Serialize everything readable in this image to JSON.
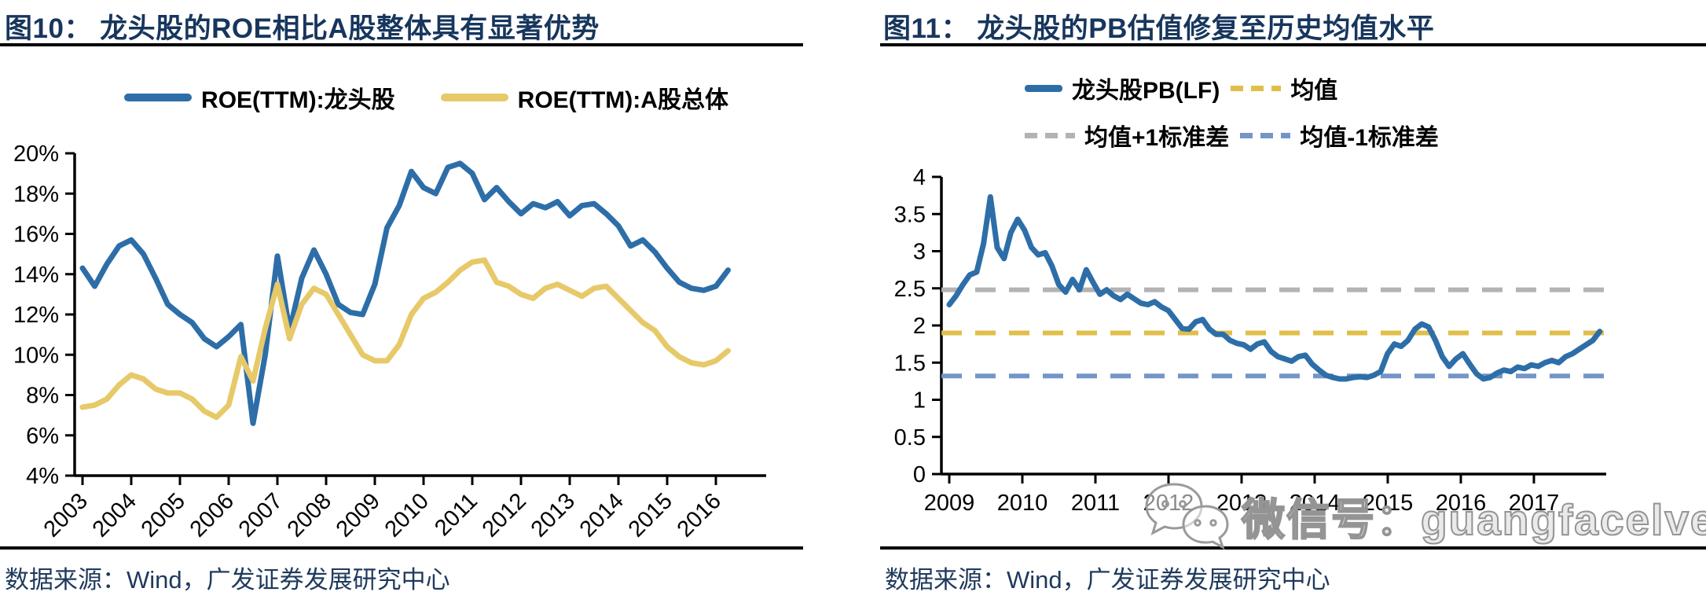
{
  "panels": [
    {
      "fig_title": "图10：  龙头股的ROE相比A股整体具有显著优势",
      "source": "数据来源：Wind，广发证券发展研究中心"
    },
    {
      "fig_title": "图11：  龙头股的PB估值修复至历史均值水平",
      "source": "数据来源：Wind，广发证券发展研究中心"
    }
  ],
  "watermark": {
    "icon": "wechat-icon",
    "text": "微信号：guangfacelve"
  },
  "colors": {
    "blue": "#2d6ea8",
    "yellow": "#e7c969",
    "gold": "#e0be4a",
    "gray": "#b3b3b3",
    "steel": "#7396c6",
    "axis": "#000000",
    "navy": "#17365d"
  },
  "chart_data": [
    {
      "type": "line",
      "title": "龙头股的ROE相比A股整体具有显著优势",
      "xlabel": "",
      "ylabel": "",
      "ylim": [
        4,
        20
      ],
      "x_start": 2003.0,
      "x_step": 0.25,
      "legend_position": "top",
      "grid": false,
      "yticks": {
        "values": [
          4,
          6,
          8,
          10,
          12,
          14,
          16,
          18,
          20
        ],
        "labels": [
          "4%",
          "6%",
          "8%",
          "10%",
          "12%",
          "14%",
          "16%",
          "18%",
          "20%"
        ]
      },
      "xticks": {
        "values": [
          2003,
          2004,
          2005,
          2006,
          2007,
          2008,
          2009,
          2010,
          2011,
          2012,
          2013,
          2014,
          2015,
          2016
        ],
        "labels": [
          "2003",
          "2004",
          "2005",
          "2006",
          "2007",
          "2008",
          "2009",
          "2010",
          "2011",
          "2012",
          "2013",
          "2014",
          "2015",
          "2016"
        ]
      },
      "series": [
        {
          "name": "ROE(TTM):龙头股",
          "color_key": "blue",
          "values": [
            14.3,
            13.4,
            14.5,
            15.4,
            15.7,
            15.0,
            13.8,
            12.5,
            12.0,
            11.6,
            10.8,
            10.4,
            10.9,
            11.5,
            6.6,
            10.0,
            14.9,
            11.2,
            13.8,
            15.2,
            14.0,
            12.5,
            12.1,
            12.0,
            13.5,
            16.3,
            17.4,
            19.1,
            18.3,
            18.0,
            19.3,
            19.5,
            19.0,
            17.7,
            18.3,
            17.6,
            17.0,
            17.5,
            17.3,
            17.6,
            16.9,
            17.4,
            17.5,
            17.0,
            16.4,
            15.4,
            15.7,
            15.1,
            14.3,
            13.6,
            13.3,
            13.2,
            13.4,
            14.2
          ]
        },
        {
          "name": "ROE(TTM):A股总体",
          "color_key": "yellow",
          "values": [
            7.4,
            7.5,
            7.8,
            8.5,
            9.0,
            8.8,
            8.3,
            8.1,
            8.1,
            7.8,
            7.2,
            6.9,
            7.5,
            9.9,
            8.7,
            11.3,
            13.5,
            10.8,
            12.5,
            13.3,
            13.0,
            12.0,
            11.0,
            10.0,
            9.7,
            9.7,
            10.5,
            12.0,
            12.8,
            13.1,
            13.6,
            14.2,
            14.6,
            14.7,
            13.6,
            13.4,
            13.0,
            12.8,
            13.3,
            13.5,
            13.2,
            12.9,
            13.3,
            13.4,
            12.8,
            12.2,
            11.6,
            11.2,
            10.4,
            9.9,
            9.6,
            9.5,
            9.7,
            10.2
          ]
        }
      ]
    },
    {
      "type": "line",
      "title": "龙头股的PB估值修复至历史均值水平",
      "xlabel": "",
      "ylabel": "",
      "ylim": [
        0,
        4
      ],
      "x_start": 2009.0,
      "x_step": 0.0937,
      "legend_position": "top",
      "grid": false,
      "yticks": {
        "values": [
          0,
          0.5,
          1,
          1.5,
          2,
          2.5,
          3,
          3.5,
          4
        ],
        "labels": [
          "0",
          "0.5",
          "1",
          "1.5",
          "2",
          "2.5",
          "3",
          "3.5",
          "4"
        ]
      },
      "xticks": {
        "values": [
          2009,
          2010,
          2011,
          2012,
          2013,
          2014,
          2015,
          2016,
          2017
        ],
        "labels": [
          "2009",
          "2010",
          "2011",
          "2012",
          "2013",
          "2014",
          "2015",
          "2016",
          "2017"
        ]
      },
      "series": [
        {
          "name": "龙头股PB(LF)",
          "color_key": "blue",
          "values": [
            2.28,
            2.4,
            2.55,
            2.68,
            2.72,
            3.1,
            3.73,
            3.05,
            2.9,
            3.25,
            3.43,
            3.28,
            3.05,
            2.95,
            2.98,
            2.8,
            2.55,
            2.45,
            2.62,
            2.48,
            2.75,
            2.58,
            2.42,
            2.48,
            2.4,
            2.35,
            2.42,
            2.36,
            2.3,
            2.28,
            2.32,
            2.25,
            2.2,
            2.08,
            1.96,
            1.95,
            2.05,
            2.08,
            1.95,
            1.88,
            1.88,
            1.8,
            1.76,
            1.74,
            1.68,
            1.75,
            1.78,
            1.65,
            1.58,
            1.55,
            1.52,
            1.58,
            1.6,
            1.48,
            1.4,
            1.33,
            1.3,
            1.28,
            1.28,
            1.3,
            1.31,
            1.3,
            1.33,
            1.38,
            1.62,
            1.75,
            1.72,
            1.8,
            1.95,
            2.02,
            1.98,
            1.8,
            1.58,
            1.45,
            1.55,
            1.62,
            1.48,
            1.35,
            1.28,
            1.3,
            1.36,
            1.4,
            1.38,
            1.44,
            1.42,
            1.47,
            1.45,
            1.5,
            1.53,
            1.5,
            1.58,
            1.62,
            1.68,
            1.74,
            1.8,
            1.92
          ]
        }
      ],
      "ref_lines": [
        {
          "name": "均值",
          "value": 1.9,
          "style": "dashed",
          "color_key": "gold"
        },
        {
          "name": "均值+1标准差",
          "value": 2.48,
          "style": "dashed",
          "color_key": "gray"
        },
        {
          "name": "均值-1标准差",
          "value": 1.32,
          "style": "dashed",
          "color_key": "steel"
        }
      ]
    }
  ]
}
